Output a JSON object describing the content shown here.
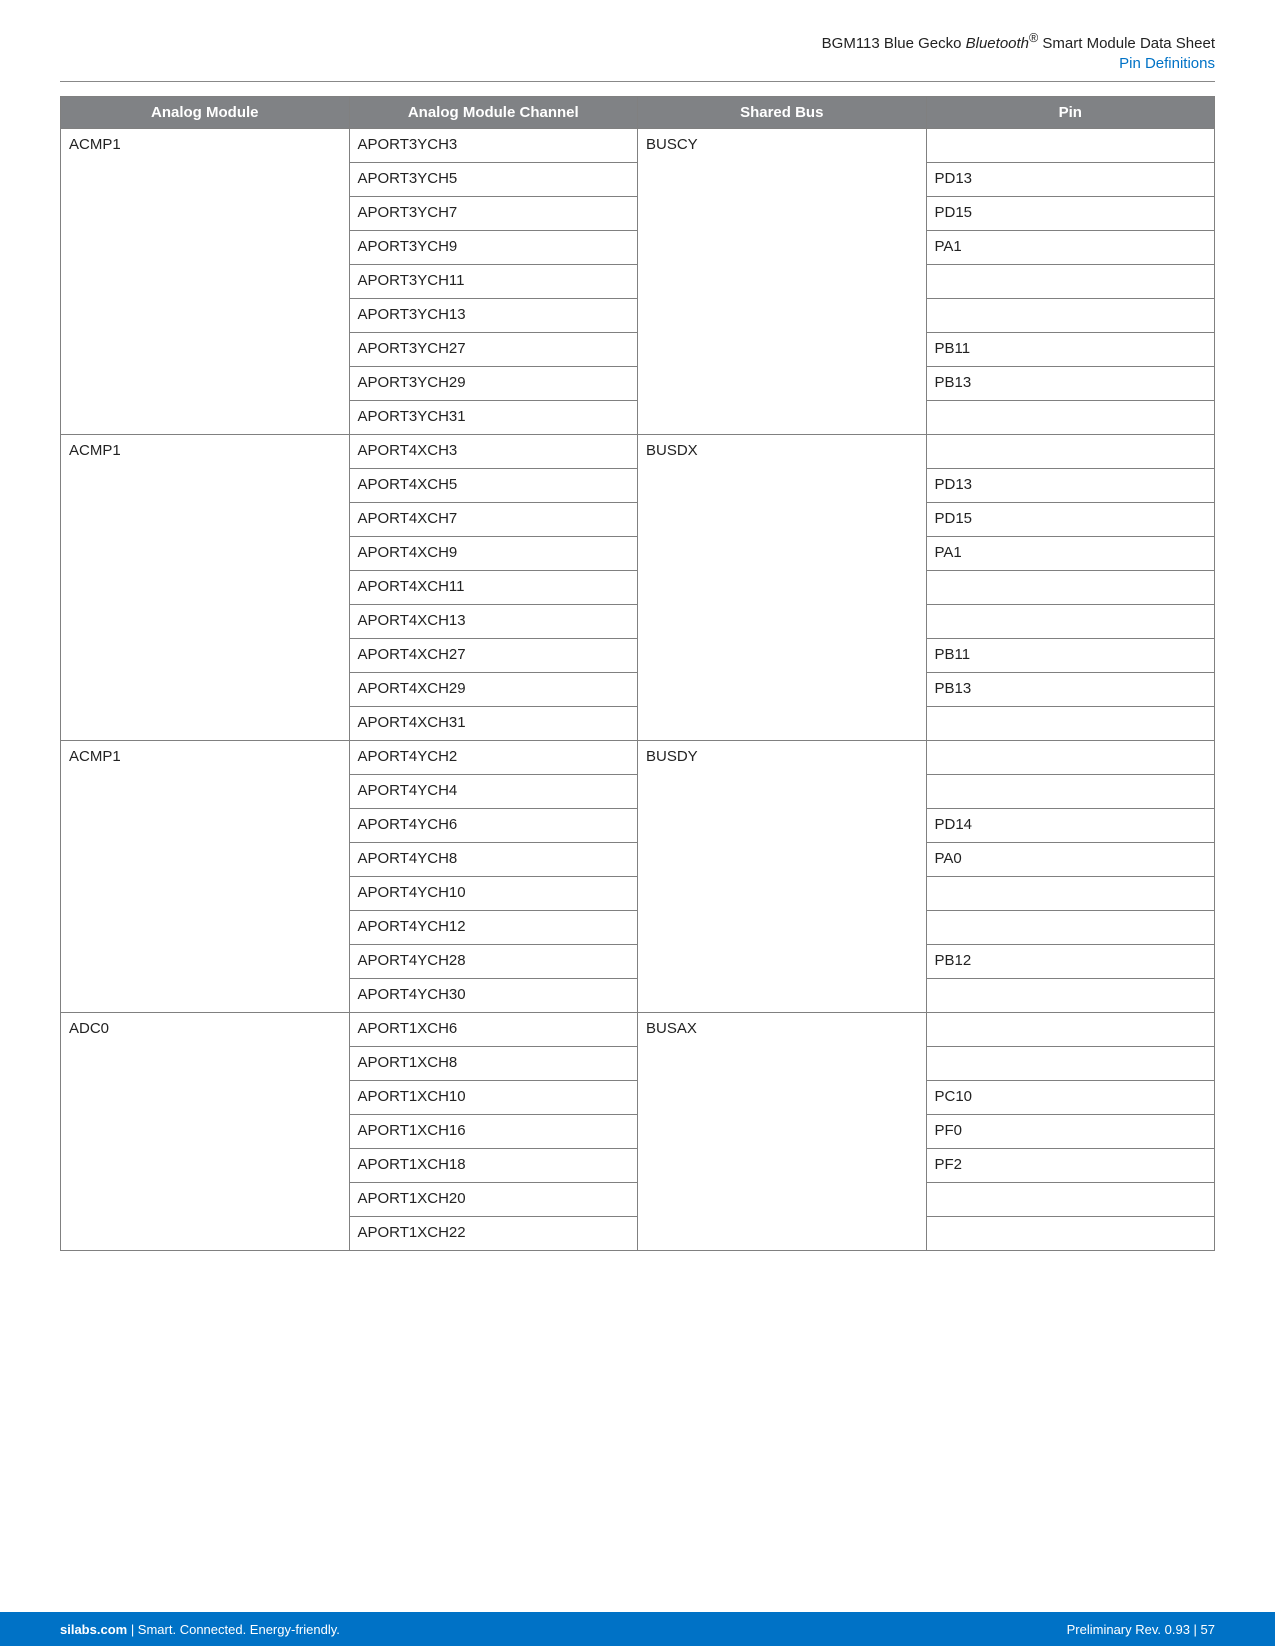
{
  "header": {
    "title_prefix": "BGM113 Blue Gecko ",
    "title_em": "Bluetooth",
    "title_reg": "®",
    "title_suffix": " Smart Module Data Sheet",
    "subtitle": "Pin Definitions",
    "subtitle_color": "#0072c6"
  },
  "table": {
    "header_bg": "#808285",
    "header_fg": "#ffffff",
    "border_color": "#808080",
    "columns": [
      "Analog Module",
      "Analog Module Channel",
      "Shared Bus",
      "Pin"
    ],
    "col_widths": [
      "25%",
      "25%",
      "25%",
      "25%"
    ],
    "groups": [
      {
        "module": "ACMP1",
        "bus": "BUSCY",
        "rows": [
          {
            "channel": "APORT3YCH3",
            "pin": ""
          },
          {
            "channel": "APORT3YCH5",
            "pin": "PD13"
          },
          {
            "channel": "APORT3YCH7",
            "pin": "PD15"
          },
          {
            "channel": "APORT3YCH9",
            "pin": "PA1"
          },
          {
            "channel": "APORT3YCH11",
            "pin": ""
          },
          {
            "channel": "APORT3YCH13",
            "pin": ""
          },
          {
            "channel": "APORT3YCH27",
            "pin": "PB11"
          },
          {
            "channel": "APORT3YCH29",
            "pin": "PB13"
          },
          {
            "channel": "APORT3YCH31",
            "pin": ""
          }
        ]
      },
      {
        "module": "ACMP1",
        "bus": "BUSDX",
        "rows": [
          {
            "channel": "APORT4XCH3",
            "pin": ""
          },
          {
            "channel": "APORT4XCH5",
            "pin": "PD13"
          },
          {
            "channel": "APORT4XCH7",
            "pin": "PD15"
          },
          {
            "channel": "APORT4XCH9",
            "pin": "PA1"
          },
          {
            "channel": "APORT4XCH11",
            "pin": ""
          },
          {
            "channel": "APORT4XCH13",
            "pin": ""
          },
          {
            "channel": "APORT4XCH27",
            "pin": "PB11"
          },
          {
            "channel": "APORT4XCH29",
            "pin": "PB13"
          },
          {
            "channel": "APORT4XCH31",
            "pin": ""
          }
        ]
      },
      {
        "module": "ACMP1",
        "bus": "BUSDY",
        "rows": [
          {
            "channel": "APORT4YCH2",
            "pin": ""
          },
          {
            "channel": "APORT4YCH4",
            "pin": ""
          },
          {
            "channel": "APORT4YCH6",
            "pin": "PD14"
          },
          {
            "channel": "APORT4YCH8",
            "pin": "PA0"
          },
          {
            "channel": "APORT4YCH10",
            "pin": ""
          },
          {
            "channel": "APORT4YCH12",
            "pin": ""
          },
          {
            "channel": "APORT4YCH28",
            "pin": "PB12"
          },
          {
            "channel": "APORT4YCH30",
            "pin": ""
          }
        ]
      },
      {
        "module": "ADC0",
        "bus": "BUSAX",
        "rows": [
          {
            "channel": "APORT1XCH6",
            "pin": ""
          },
          {
            "channel": "APORT1XCH8",
            "pin": ""
          },
          {
            "channel": "APORT1XCH10",
            "pin": "PC10"
          },
          {
            "channel": "APORT1XCH16",
            "pin": "PF0"
          },
          {
            "channel": "APORT1XCH18",
            "pin": "PF2"
          },
          {
            "channel": "APORT1XCH20",
            "pin": ""
          },
          {
            "channel": "APORT1XCH22",
            "pin": ""
          }
        ]
      }
    ]
  },
  "footer": {
    "bg": "#0072c6",
    "fg": "#ffffff",
    "left_bold": "silabs.com",
    "left_rest": " | Smart. Connected. Energy-friendly.",
    "right": "Preliminary Rev. 0.93  |  57"
  }
}
